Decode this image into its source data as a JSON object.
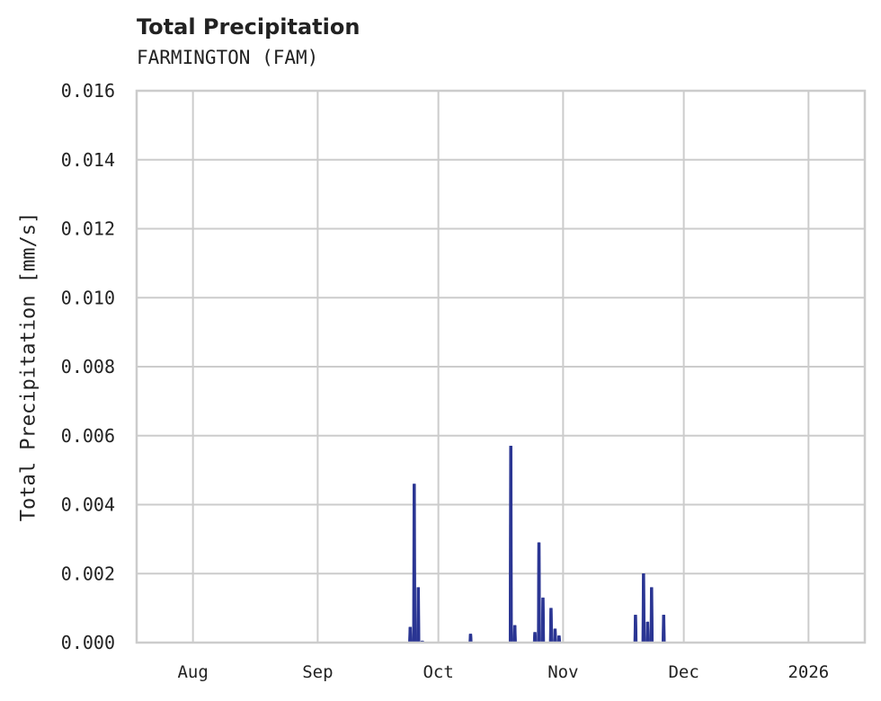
{
  "chart": {
    "title": "Total Precipitation",
    "subtitle": "FARMINGTON (FAM)",
    "ylabel": "Total Precipitation [mm/s]",
    "y_ticks": [
      "0.000",
      "0.002",
      "0.004",
      "0.006",
      "0.008",
      "0.010",
      "0.012",
      "0.014",
      "0.016"
    ],
    "x_ticks": [
      "Aug",
      "Sep",
      "Oct",
      "Nov",
      "Dec",
      "2026"
    ],
    "line_color": "#2a3593",
    "grid_color": "#cccccc"
  },
  "chart_data": {
    "type": "line",
    "title": "Total Precipitation",
    "subtitle": "FARMINGTON (FAM)",
    "xlabel": "",
    "ylabel": "Total Precipitation [mm/s]",
    "ylim": [
      0,
      0.016
    ],
    "xlim": [
      "2025-07-18",
      "2026-01-15"
    ],
    "x_tick_labels": [
      "Aug",
      "Sep",
      "Oct",
      "Nov",
      "Dec",
      "2026"
    ],
    "y_tick_labels": [
      "0.000",
      "0.002",
      "0.004",
      "0.006",
      "0.008",
      "0.010",
      "0.012",
      "0.014",
      "0.016"
    ],
    "grid": true,
    "legend": null,
    "series": [
      {
        "name": "Total Precipitation",
        "color": "#2a3593",
        "points": [
          {
            "x": "2025-09-24",
            "y": 0.00045
          },
          {
            "x": "2025-09-25",
            "y": 0.0046
          },
          {
            "x": "2025-09-26",
            "y": 0.0016
          },
          {
            "x": "2025-09-27",
            "y": 5e-05
          },
          {
            "x": "2025-10-09",
            "y": 0.00025
          },
          {
            "x": "2025-10-19",
            "y": 0.0057
          },
          {
            "x": "2025-10-20",
            "y": 0.0005
          },
          {
            "x": "2025-10-25",
            "y": 0.0003
          },
          {
            "x": "2025-10-26",
            "y": 0.0029
          },
          {
            "x": "2025-10-27",
            "y": 0.0013
          },
          {
            "x": "2025-10-29",
            "y": 0.001
          },
          {
            "x": "2025-10-30",
            "y": 0.0004
          },
          {
            "x": "2025-10-31",
            "y": 0.0002
          },
          {
            "x": "2025-11-19",
            "y": 0.0008
          },
          {
            "x": "2025-11-21",
            "y": 0.002
          },
          {
            "x": "2025-11-22",
            "y": 0.0006
          },
          {
            "x": "2025-11-23",
            "y": 0.0016
          },
          {
            "x": "2025-11-26",
            "y": 0.0008
          }
        ]
      }
    ]
  }
}
